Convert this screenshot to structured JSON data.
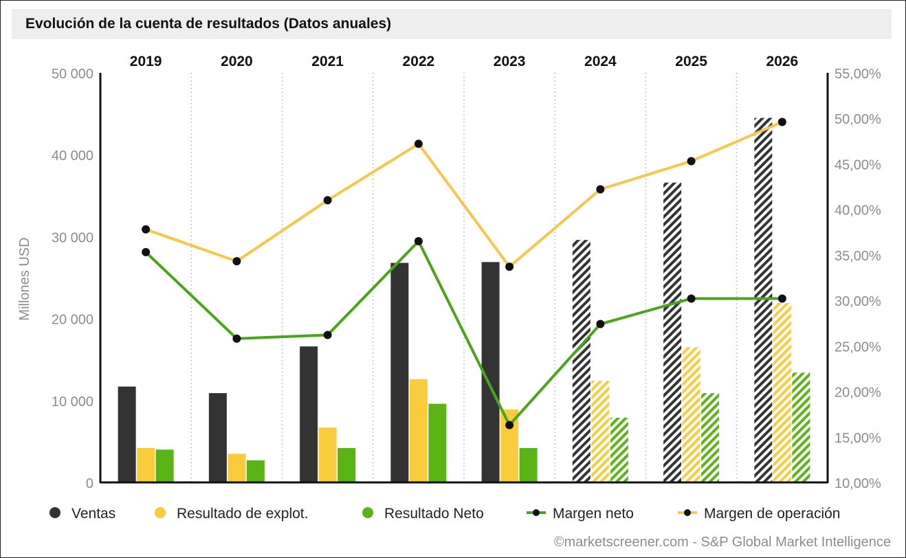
{
  "chart_data": {
    "type": "bar",
    "title": "Evolución de la cuenta de resultados (Datos anuales)",
    "categories": [
      "2019",
      "2020",
      "2021",
      "2022",
      "2023",
      "2024",
      "2025",
      "2026"
    ],
    "estimated_from_category": "2024",
    "ylabel": "Millones USD",
    "ylim": [
      0,
      50000
    ],
    "yticks": [
      0,
      10000,
      20000,
      30000,
      40000,
      50000
    ],
    "ytick_labels": [
      "0",
      "10 000",
      "20 000",
      "30 000",
      "40 000",
      "50 000"
    ],
    "y2lim": [
      10,
      55
    ],
    "y2ticks": [
      10,
      15,
      20,
      25,
      30,
      35,
      40,
      45,
      50,
      55
    ],
    "y2tick_labels": [
      "10,00%",
      "15,00%",
      "20,00%",
      "25,00%",
      "30,00%",
      "35,00%",
      "40,00%",
      "45,00%",
      "50,00%",
      "55,00%"
    ],
    "grid": "vertical-dotted",
    "legend_position": "bottom",
    "series": [
      {
        "name": "Ventas",
        "kind": "bar",
        "axis": "left",
        "color": "#333333",
        "values": [
          11700,
          10900,
          16600,
          26800,
          26900,
          29600,
          36600,
          44500
        ]
      },
      {
        "name": "Resultado de explot.",
        "kind": "bar",
        "axis": "left",
        "color": "#f9cc3c",
        "values": [
          4200,
          3500,
          6700,
          12600,
          8900,
          12400,
          16500,
          21900
        ]
      },
      {
        "name": "Resultado Neto",
        "kind": "bar",
        "axis": "left",
        "color": "#5ab416",
        "values": [
          4000,
          2700,
          4200,
          9600,
          4200,
          7900,
          10900,
          13400
        ]
      },
      {
        "name": "Margen neto",
        "kind": "line",
        "axis": "right",
        "color": "#4aa51a",
        "values": [
          35.3,
          25.8,
          26.2,
          36.5,
          16.3,
          27.4,
          30.2,
          30.2
        ]
      },
      {
        "name": "Margen de operación",
        "kind": "line",
        "axis": "right",
        "color": "#f5c84a",
        "values": [
          37.8,
          34.3,
          41.0,
          47.2,
          33.7,
          42.2,
          45.3,
          49.6
        ]
      }
    ]
  },
  "credit": "©marketscreener.com - S&P Global Market Intelligence"
}
